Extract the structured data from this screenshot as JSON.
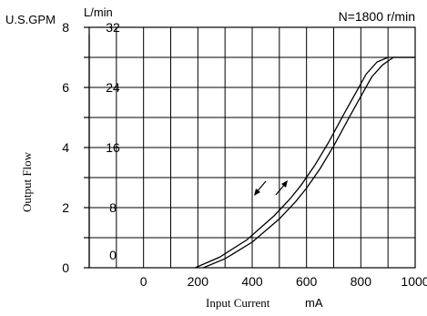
{
  "chart_data": {
    "type": "line",
    "condition": "N=1800 r/min",
    "xlabel": "Input Current",
    "xunit": "mA",
    "ylabel": "Output Flow",
    "y_left_unit": "U.S.GPM",
    "y_right_unit": "L/min",
    "x_ticks": [
      "0",
      "200",
      "400",
      "600",
      "800",
      "1000"
    ],
    "y_left_ticks": [
      "0",
      "2",
      "4",
      "6",
      "8"
    ],
    "y_right_ticks": [
      "0",
      "8",
      "16",
      "24",
      "32"
    ],
    "xlim": [
      -200,
      1000
    ],
    "ylim_lpm": [
      0,
      32
    ],
    "ylim_gpm": [
      0,
      8
    ],
    "grid": true,
    "series": [
      {
        "x": [
          220,
          300,
          400,
          500,
          560,
          600,
          650,
          700,
          760,
          800,
          840,
          880,
          920,
          1000
        ],
        "y": [
          0,
          1.2,
          3.4,
          6.5,
          8.8,
          10.6,
          13.2,
          16.2,
          20.2,
          22.8,
          25.4,
          27.0,
          28.0,
          28.0
        ]
      },
      {
        "x": [
          190,
          280,
          380,
          480,
          540,
          580,
          630,
          680,
          740,
          780,
          820,
          860,
          900,
          1000
        ],
        "y": [
          0,
          1.4,
          3.7,
          6.9,
          9.2,
          11.0,
          13.6,
          16.6,
          20.6,
          23.2,
          25.8,
          27.4,
          28.0,
          28.0
        ]
      }
    ]
  }
}
